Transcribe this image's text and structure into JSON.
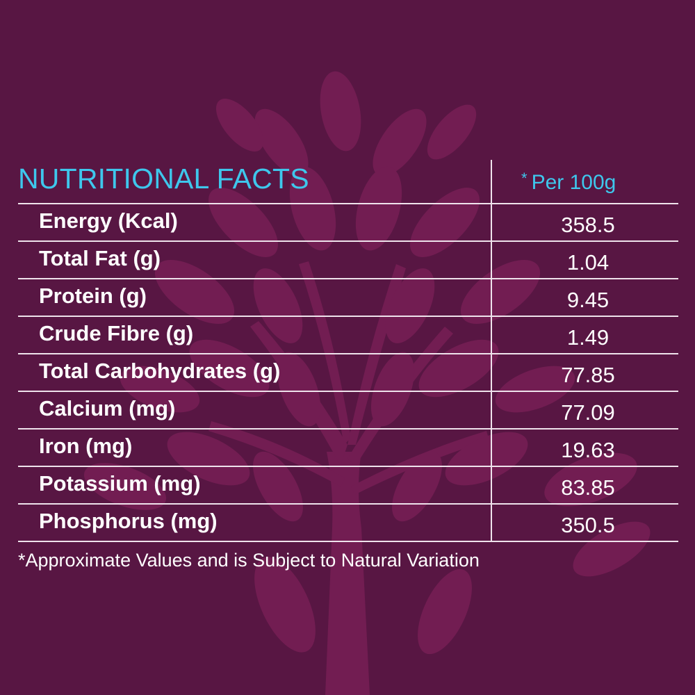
{
  "colors": {
    "background": "#581643",
    "tree": "#721d52",
    "accent": "#3ec7ec",
    "text": "#ffffff",
    "rule": "#efe3ec"
  },
  "icons": [
    "tree-icon"
  ],
  "table": {
    "title": "NUTRITIONAL FACTS",
    "per_header_star": "*",
    "per_header": "Per 100g",
    "rows": [
      {
        "label": "Energy (Kcal)",
        "value": "358.5"
      },
      {
        "label": "Total Fat (g)",
        "value": "1.04"
      },
      {
        "label": "Protein (g)",
        "value": "9.45"
      },
      {
        "label": "Crude Fibre (g)",
        "value": "1.49"
      },
      {
        "label": "Total Carbohydrates (g)",
        "value": "77.85"
      },
      {
        "label": "Calcium (mg)",
        "value": "77.09"
      },
      {
        "label": "Iron (mg)",
        "value": "19.63"
      },
      {
        "label": "Potassium (mg)",
        "value": "83.85"
      },
      {
        "label": "Phosphorus (mg)",
        "value": "350.5"
      }
    ]
  },
  "footnote": "*Approximate Values and is Subject to Natural Variation"
}
